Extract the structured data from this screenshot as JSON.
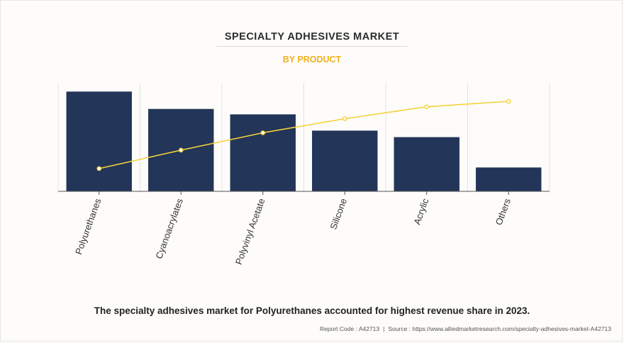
{
  "header": {
    "title": "SPECIALTY ADHESIVES MARKET",
    "subtitle": "BY PRODUCT"
  },
  "chart_data": {
    "type": "bar",
    "categories": [
      "Polyurethanes",
      "Cyanoacrylates",
      "Polyvinyl Acetate",
      "Silicone",
      "Acrylic",
      "Others"
    ],
    "series": [
      {
        "type": "bar",
        "values": [
          92,
          76,
          71,
          56,
          50,
          22
        ],
        "color": "#233558"
      },
      {
        "type": "line",
        "values": [
          21,
          38,
          54,
          67,
          78,
          83
        ],
        "color": "#f5d23c"
      }
    ],
    "ylim": [
      0,
      100
    ],
    "grid": "vertical",
    "y_axis_labels_visible": false,
    "x_tick_label_rotation": -70
  },
  "footer": {
    "caption": "The specialty adhesives market for Polyurethanes accounted for highest revenue share in 2023.",
    "report_code": "Report Code : A42713",
    "separator": "|",
    "source": "Source : https://www.alliedmarketresearch.com/specialty-adhesives-market-A42713"
  }
}
